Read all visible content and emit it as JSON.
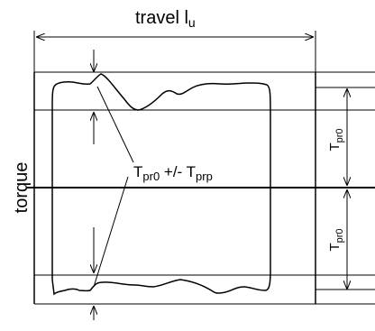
{
  "labels": {
    "travel": "travel l",
    "travel_sub": "u",
    "torque": "torque",
    "annotation_main": "T",
    "annotation_sub1": "pr0",
    "annotation_mid": " +/- T",
    "annotation_sub2": "prp",
    "tpr0_upper_main": "T",
    "tpr0_upper_sub": "pr0",
    "tpr0_lower_main": "T",
    "tpr0_lower_sub": "pr0"
  }
}
